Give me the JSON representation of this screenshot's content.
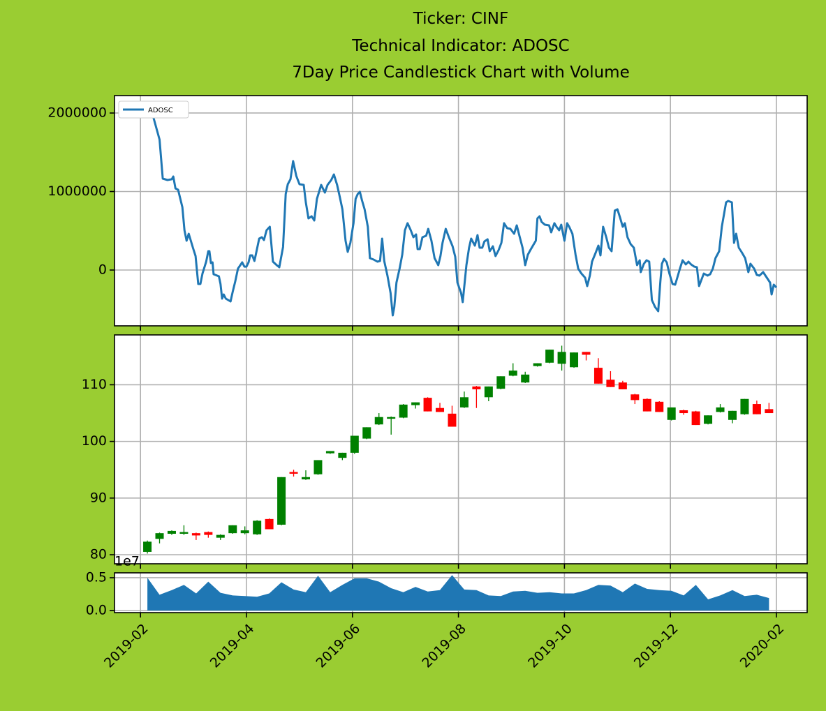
{
  "chart_data": [
    {
      "type": "line",
      "title": [
        "Ticker: CINF",
        "Technical Indicator: ADOSC",
        "7Day Price Candlestick Chart with Volume"
      ],
      "x": [
        1.13,
        1.17,
        1.25,
        1.36,
        1.42,
        1.51,
        1.59,
        1.62,
        1.66,
        1.71,
        1.79,
        1.83,
        1.87,
        1.91,
        1.99,
        2.04,
        2.09,
        2.13,
        2.17,
        2.24,
        2.28,
        2.3,
        2.33,
        2.36,
        2.38,
        2.48,
        2.51,
        2.54,
        2.57,
        2.61,
        2.7,
        2.74,
        2.79,
        2.84,
        2.92,
        2.96,
        3.0,
        3.04,
        3.07,
        3.11,
        3.15,
        3.19,
        3.24,
        3.29,
        3.33,
        3.38,
        3.44,
        3.5,
        3.57,
        3.62,
        3.69,
        3.74,
        3.78,
        3.83,
        3.88,
        3.94,
        4.0,
        4.08,
        4.12,
        4.17,
        4.23,
        4.28,
        4.33,
        4.41,
        4.48,
        4.53,
        4.6,
        4.65,
        4.71,
        4.76,
        4.81,
        4.87,
        4.91,
        4.96,
        5.02,
        5.06,
        5.1,
        5.14,
        5.18,
        5.23,
        5.29,
        5.33,
        5.4,
        5.47,
        5.52,
        5.56,
        5.6,
        5.66,
        5.72,
        5.76,
        5.79,
        5.83,
        5.89,
        5.94,
        5.99,
        6.04,
        6.1,
        6.15,
        6.2,
        6.23,
        6.27,
        6.32,
        6.39,
        6.43,
        6.49,
        6.55,
        6.62,
        6.66,
        6.7,
        6.76,
        6.82,
        6.89,
        6.94,
        6.98,
        7.05,
        7.08,
        7.15,
        7.2,
        7.24,
        7.31,
        7.36,
        7.4,
        7.45,
        7.49,
        7.55,
        7.59,
        7.65,
        7.7,
        7.76,
        7.81,
        7.86,
        7.92,
        7.98,
        8.05,
        8.1,
        8.15,
        8.21,
        8.26,
        8.31,
        8.36,
        8.46,
        8.49,
        8.53,
        8.57,
        8.63,
        8.71,
        8.75,
        8.81,
        8.85,
        8.9,
        8.94,
        9.0,
        9.05,
        9.09,
        9.15,
        9.21,
        9.26,
        9.32,
        9.39,
        9.43,
        9.48,
        9.52,
        9.59,
        9.64,
        9.68,
        9.73,
        9.79,
        9.84,
        9.89,
        9.95,
        10.0,
        10.05,
        10.1,
        10.14,
        10.19,
        10.25,
        10.31,
        10.37,
        10.42,
        10.44,
        10.5,
        10.55,
        10.6,
        10.65,
        10.71,
        10.77,
        10.81,
        10.84,
        10.88,
        10.93,
        10.98,
        11.04,
        11.09,
        11.13,
        11.18,
        11.23,
        11.29,
        11.34,
        11.39,
        11.45,
        11.5,
        11.54,
        11.58,
        11.63,
        11.7,
        11.75,
        11.8,
        11.85,
        11.92,
        11.97,
        12.05,
        12.09,
        12.16,
        12.2,
        12.24,
        12.29,
        12.35,
        12.41,
        12.47,
        12.51,
        12.58,
        12.63,
        12.68,
        12.75,
        12.82,
        12.88,
        12.91,
        12.95,
        13.0
      ],
      "series": [
        {
          "name": "ADOSC",
          "color": "#1f77b4",
          "values": [
            1947000,
            2107000,
            1929000,
            1662000,
            1164000,
            1147000,
            1156000,
            1191000,
            1040000,
            1022000,
            800000,
            507000,
            373000,
            462000,
            284000,
            178000,
            -178000,
            -178000,
            -44000,
            107000,
            240000,
            240000,
            89000,
            98000,
            -53000,
            -80000,
            -178000,
            -364000,
            -311000,
            -364000,
            -400000,
            -276000,
            -142000,
            18000,
            98000,
            44000,
            44000,
            98000,
            187000,
            187000,
            116000,
            240000,
            400000,
            418000,
            382000,
            507000,
            551000,
            107000,
            62000,
            36000,
            293000,
            969000,
            1093000,
            1156000,
            1387000,
            1200000,
            1093000,
            1084000,
            862000,
            658000,
            684000,
            631000,
            907000,
            1084000,
            987000,
            1084000,
            1147000,
            1218000,
            1084000,
            933000,
            773000,
            373000,
            231000,
            347000,
            596000,
            907000,
            969000,
            996000,
            889000,
            773000,
            551000,
            151000,
            133000,
            107000,
            116000,
            400000,
            116000,
            -71000,
            -293000,
            -578000,
            -471000,
            -160000,
            18000,
            196000,
            507000,
            596000,
            507000,
            418000,
            453000,
            267000,
            267000,
            418000,
            436000,
            524000,
            373000,
            151000,
            62000,
            178000,
            347000,
            524000,
            418000,
            302000,
            169000,
            -160000,
            -293000,
            -409000,
            62000,
            284000,
            400000,
            311000,
            444000,
            284000,
            284000,
            364000,
            391000,
            240000,
            302000,
            178000,
            258000,
            347000,
            596000,
            533000,
            524000,
            462000,
            569000,
            436000,
            284000,
            62000,
            196000,
            258000,
            373000,
            658000,
            684000,
            613000,
            578000,
            569000,
            480000,
            596000,
            551000,
            507000,
            578000,
            373000,
            596000,
            551000,
            462000,
            196000,
            18000,
            -44000,
            -98000,
            -204000,
            -71000,
            107000,
            222000,
            311000,
            187000,
            551000,
            418000,
            284000,
            240000,
            756000,
            773000,
            667000,
            551000,
            596000,
            418000,
            329000,
            284000,
            62000,
            124000,
            -27000,
            80000,
            124000,
            107000,
            -382000,
            -471000,
            -524000,
            -142000,
            80000,
            142000,
            98000,
            -44000,
            -178000,
            -187000,
            -98000,
            18000,
            124000,
            71000,
            107000,
            71000,
            44000,
            36000,
            -204000,
            -133000,
            -44000,
            -71000,
            -53000,
            18000,
            151000,
            240000,
            551000,
            862000,
            880000,
            862000,
            347000,
            462000,
            284000,
            222000,
            151000,
            -27000,
            80000,
            18000,
            -62000,
            -71000,
            -27000,
            -98000,
            -160000,
            -311000,
            -187000,
            -222000
          ]
        }
      ],
      "xlim": [
        0.51,
        13.58
      ],
      "xticks": [
        1,
        3,
        5,
        7,
        9,
        11,
        13
      ],
      "ylim": [
        -711000,
        2222000
      ],
      "yticks": [
        0,
        1000000,
        2000000
      ],
      "grid": true,
      "legend": "upper left"
    },
    {
      "type": "candlestick",
      "x": [
        1.13,
        1.36,
        1.59,
        1.82,
        2.05,
        2.28,
        2.51,
        2.74,
        2.97,
        3.2,
        3.43,
        3.66,
        3.89,
        4.12,
        4.35,
        4.58,
        4.81,
        5.04,
        5.27,
        5.5,
        5.73,
        5.96,
        6.19,
        6.42,
        6.65,
        6.88,
        7.11,
        7.34,
        7.57,
        7.8,
        8.03,
        8.26,
        8.49,
        8.72,
        8.95,
        9.18,
        9.41,
        9.64,
        9.87,
        10.1,
        10.33,
        10.56,
        10.79,
        11.02,
        11.25,
        11.48,
        11.71,
        11.94,
        12.17,
        12.4,
        12.63,
        12.86
      ],
      "open": [
        80.5,
        82.8,
        83.7,
        83.7,
        83.8,
        84.0,
        83.0,
        83.8,
        83.8,
        83.6,
        86.3,
        85.3,
        94.6,
        93.3,
        94.2,
        97.9,
        97.1,
        98.0,
        100.5,
        103.0,
        104.0,
        104.2,
        106.4,
        107.7,
        105.9,
        104.9,
        106.0,
        109.7,
        107.8,
        109.3,
        111.6,
        110.4,
        113.3,
        113.9,
        113.7,
        113.1,
        115.8,
        113.0,
        110.9,
        110.4,
        108.3,
        107.5,
        107.0,
        103.8,
        105.5,
        105.3,
        103.1,
        105.2,
        103.8,
        104.8,
        106.6,
        105.7
      ],
      "high": [
        82.5,
        83.9,
        84.3,
        85.2,
        83.9,
        84.1,
        83.6,
        85.2,
        85.0,
        86.1,
        86.4,
        93.7,
        95.0,
        94.9,
        96.7,
        98.3,
        98.0,
        101.0,
        102.5,
        105.0,
        104.4,
        106.6,
        106.9,
        107.8,
        106.8,
        106.3,
        108.8,
        109.8,
        109.7,
        111.5,
        113.8,
        112.3,
        113.8,
        116.2,
        116.9,
        115.7,
        115.8,
        114.7,
        112.4,
        110.7,
        108.4,
        107.6,
        107.1,
        106.0,
        105.6,
        105.4,
        104.6,
        106.6,
        105.4,
        107.5,
        107.2,
        106.8
      ],
      "low": [
        80.2,
        82.0,
        83.5,
        83.5,
        82.6,
        83.0,
        82.6,
        83.7,
        83.6,
        83.5,
        84.5,
        85.2,
        93.8,
        93.2,
        94.1,
        97.8,
        96.7,
        97.8,
        100.4,
        102.9,
        101.2,
        104.1,
        105.8,
        105.3,
        105.2,
        102.6,
        105.9,
        105.9,
        107.1,
        109.2,
        111.5,
        110.3,
        113.2,
        113.8,
        112.5,
        113.0,
        114.3,
        110.2,
        109.6,
        109.2,
        106.6,
        105.3,
        105.2,
        103.7,
        104.7,
        102.9,
        103.0,
        105.1,
        103.2,
        104.7,
        104.8,
        105.0
      ],
      "close": [
        82.3,
        83.8,
        84.2,
        84.0,
        83.4,
        83.5,
        83.5,
        85.2,
        84.3,
        86.0,
        84.5,
        93.7,
        94.3,
        93.7,
        96.7,
        98.3,
        98.0,
        101.0,
        102.5,
        104.3,
        104.3,
        106.5,
        106.9,
        105.3,
        105.2,
        102.6,
        107.8,
        109.2,
        109.7,
        111.5,
        112.5,
        111.8,
        113.8,
        116.2,
        115.8,
        115.7,
        115.3,
        110.2,
        109.6,
        109.2,
        107.3,
        105.3,
        105.2,
        106.0,
        105.0,
        102.9,
        104.6,
        106.0,
        105.4,
        107.5,
        104.8,
        105.0
      ],
      "up_color": "green",
      "down_color": "red",
      "xlim": [
        0.51,
        13.58
      ],
      "xticks": [
        1,
        3,
        5,
        7,
        9,
        11,
        13
      ],
      "ylim": [
        78.4,
        118.8
      ],
      "yticks": [
        80,
        90,
        100,
        110
      ],
      "grid": true
    },
    {
      "type": "area",
      "x": [
        1.13,
        1.36,
        1.59,
        1.82,
        2.05,
        2.28,
        2.51,
        2.74,
        2.97,
        3.2,
        3.43,
        3.66,
        3.89,
        4.12,
        4.35,
        4.58,
        4.81,
        5.04,
        5.27,
        5.5,
        5.73,
        5.96,
        6.19,
        6.42,
        6.65,
        6.88,
        7.11,
        7.34,
        7.57,
        7.8,
        8.03,
        8.26,
        8.49,
        8.72,
        8.95,
        9.18,
        9.41,
        9.64,
        9.87,
        10.1,
        10.33,
        10.56,
        10.79,
        11.02,
        11.25,
        11.48,
        11.71,
        11.94,
        12.17,
        12.4,
        12.63,
        12.86
      ],
      "values": [
        0.5,
        0.24,
        0.31,
        0.39,
        0.26,
        0.44,
        0.27,
        0.23,
        0.22,
        0.21,
        0.26,
        0.43,
        0.32,
        0.28,
        0.53,
        0.28,
        0.39,
        0.49,
        0.49,
        0.44,
        0.34,
        0.28,
        0.36,
        0.29,
        0.31,
        0.54,
        0.32,
        0.31,
        0.23,
        0.22,
        0.29,
        0.3,
        0.27,
        0.28,
        0.26,
        0.26,
        0.31,
        0.39,
        0.38,
        0.28,
        0.41,
        0.33,
        0.31,
        0.3,
        0.23,
        0.39,
        0.17,
        0.23,
        0.31,
        0.22,
        0.24,
        0.19
      ],
      "color": "#1f77b4",
      "offset_label": "1e7",
      "xlim": [
        0.51,
        13.58
      ],
      "xticks": [
        {
          "value": 1,
          "label": "2019-02"
        },
        {
          "value": 3,
          "label": "2019-04"
        },
        {
          "value": 5,
          "label": "2019-06"
        },
        {
          "value": 7,
          "label": "2019-08"
        },
        {
          "value": 9,
          "label": "2019-10"
        },
        {
          "value": 11,
          "label": "2019-12"
        },
        {
          "value": 13,
          "label": "2020-02"
        }
      ],
      "ylim": [
        -0.032,
        0.574
      ],
      "yticks": [
        {
          "value": 0,
          "label": "0.0"
        },
        {
          "value": 0.5,
          "label": "0.5"
        }
      ],
      "grid": true
    }
  ]
}
